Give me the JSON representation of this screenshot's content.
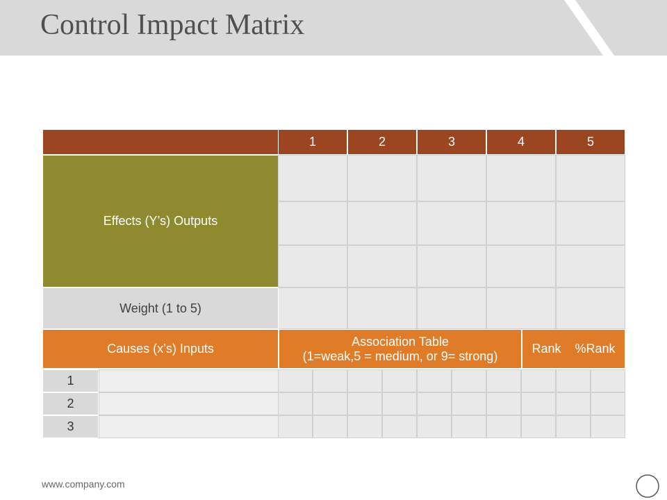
{
  "header": {
    "title": "Control Impact Matrix"
  },
  "table": {
    "column_headers": [
      "1",
      "2",
      "3",
      "4",
      "5"
    ],
    "effects_label": "Effects (Y’s) Outputs",
    "weight_label": "Weight (1 to 5)",
    "causes_label": "Causes (x’s) Inputs",
    "association_title": "Association Table",
    "association_note": "(1=weak,5 = medium, or 9= strong)",
    "rank_label": "Rank",
    "percent_rank_label": "%Rank",
    "row_numbers": [
      "1",
      "2",
      "3"
    ]
  },
  "footer": {
    "url": "www.company.com"
  }
}
